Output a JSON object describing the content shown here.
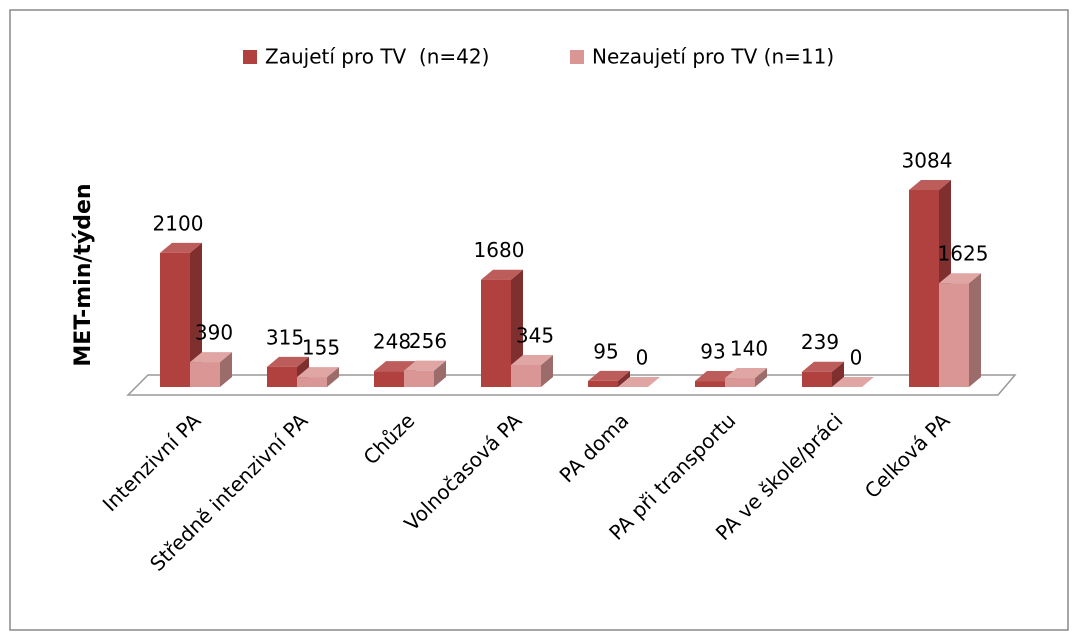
{
  "chart_data": {
    "type": "bar3d",
    "ylabel": "MET-min/týden",
    "categories": [
      "Intenzivní PA",
      "Středně intenzivní PA",
      "Chůze",
      "Volnočasová PA",
      "PA doma",
      "PA při transportu",
      "PA ve škole/práci",
      "Celková PA"
    ],
    "series": [
      {
        "name": "Zaujetí pro TV  (n=42)",
        "color": "#b0413e",
        "values": [
          2100,
          315,
          248,
          1680,
          95,
          93,
          239,
          3084
        ]
      },
      {
        "name": "Nezaujetí pro TV (n=11)",
        "color": "#d99694",
        "values": [
          390,
          155,
          256,
          345,
          0,
          140,
          0,
          1625
        ]
      }
    ],
    "ylim": [
      0,
      4000
    ],
    "legend": "top"
  }
}
